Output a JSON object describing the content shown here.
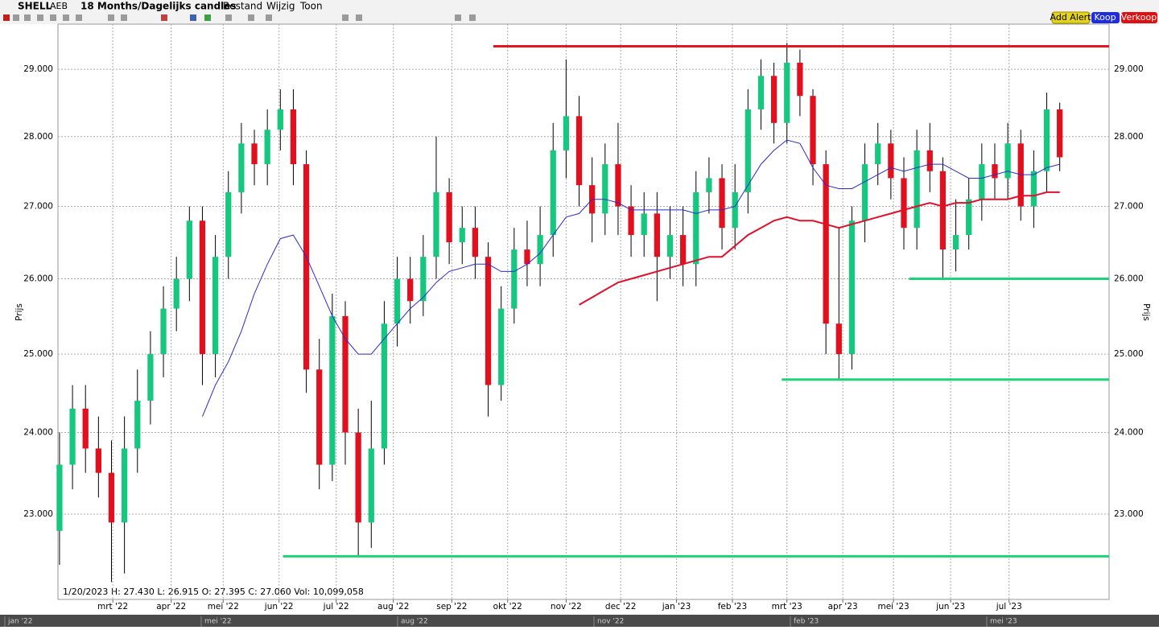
{
  "toolbar": {
    "symbol": "SHELL",
    "exchange": "AEB",
    "period": "18 Months/Dagelijks candles",
    "menus": [
      "Bestand",
      "Wijzig",
      "Toon"
    ],
    "buttons": [
      "Add Alert",
      "Koop",
      "Verkoop"
    ]
  },
  "info": "1/20/2023  H: 27.430  L: 26.915  O: 27.395  C: 27.060  Vol: 10,099,058",
  "navigator": {
    "labels": [
      "jan '22",
      "mei '22",
      "aug '22",
      "nov '22",
      "feb '23",
      "mei '23"
    ]
  },
  "chart_data": {
    "type": "candlestick",
    "ylabel": "Prijs",
    "log_scale": true,
    "grid": true,
    "up_color": "#17c77f",
    "down_color": "#e0101e",
    "categories": [
      null,
      null,
      null,
      null,
      null,
      null,
      null,
      null,
      null,
      null,
      null,
      null,
      null,
      null,
      null,
      null,
      null,
      null,
      null,
      null,
      null,
      null,
      null,
      null,
      null,
      null,
      null,
      null,
      null,
      null,
      null,
      null,
      null,
      null,
      null,
      null,
      null,
      null,
      null,
      null,
      null,
      null,
      null,
      null,
      null,
      null,
      null,
      null,
      null,
      null,
      null,
      null,
      null,
      null,
      null,
      null,
      null,
      null,
      null,
      null,
      null,
      null,
      null,
      null,
      null,
      null,
      null,
      null,
      null,
      null,
      null,
      null,
      null,
      null,
      null,
      null,
      null,
      null
    ],
    "open": [
      22.8,
      23.6,
      24.3,
      23.8,
      23.5,
      22.9,
      23.8,
      24.4,
      25.0,
      25.6,
      26.0,
      26.8,
      25.0,
      26.3,
      27.2,
      27.9,
      27.6,
      28.1,
      28.4,
      27.6,
      24.8,
      23.6,
      25.5,
      24.0,
      22.9,
      23.8,
      25.4,
      26.0,
      25.7,
      26.3,
      27.2,
      26.5,
      26.7,
      26.3,
      24.6,
      25.6,
      26.4,
      26.2,
      26.6,
      27.8,
      28.3,
      27.3,
      26.9,
      27.6,
      27.0,
      26.6,
      26.9,
      26.3,
      26.6,
      26.2,
      27.2,
      27.4,
      26.7,
      27.2,
      28.4,
      28.9,
      28.2,
      29.1,
      28.6,
      27.6,
      25.4,
      25.0,
      26.8,
      27.6,
      27.9,
      27.4,
      26.7,
      27.8,
      27.5,
      26.4,
      26.6,
      27.1,
      27.6,
      27.4,
      27.9,
      27.0,
      27.5,
      28.4
    ],
    "high": [
      24.0,
      24.6,
      24.6,
      24.2,
      23.9,
      24.2,
      24.8,
      25.3,
      25.9,
      26.3,
      27.0,
      27.0,
      26.6,
      27.5,
      28.2,
      28.1,
      28.4,
      28.7,
      28.7,
      27.8,
      25.2,
      25.8,
      25.7,
      24.3,
      24.4,
      25.7,
      26.3,
      26.3,
      26.6,
      28.0,
      27.4,
      27.0,
      27.0,
      26.5,
      25.9,
      26.7,
      26.8,
      27.0,
      28.2,
      29.15,
      28.6,
      27.7,
      27.9,
      28.2,
      27.3,
      27.2,
      27.2,
      27.0,
      27.0,
      27.5,
      27.7,
      27.6,
      27.6,
      28.7,
      29.15,
      29.1,
      29.4,
      29.3,
      28.7,
      27.8,
      26.7,
      27.0,
      27.9,
      28.2,
      28.1,
      27.7,
      28.1,
      28.2,
      27.7,
      27.1,
      27.4,
      27.9,
      27.9,
      28.2,
      28.1,
      27.8,
      28.65,
      28.5
    ],
    "low": [
      22.4,
      23.3,
      23.5,
      23.2,
      22.2,
      22.3,
      23.5,
      24.1,
      24.7,
      25.3,
      25.7,
      24.6,
      24.7,
      26.0,
      26.9,
      27.3,
      27.3,
      27.8,
      27.3,
      24.5,
      23.3,
      23.4,
      23.6,
      22.5,
      22.6,
      23.6,
      25.1,
      25.4,
      25.5,
      26.0,
      26.2,
      26.2,
      26.0,
      24.2,
      24.4,
      25.4,
      25.9,
      25.9,
      26.3,
      27.4,
      27.0,
      26.5,
      26.6,
      26.6,
      26.3,
      26.3,
      25.7,
      26.0,
      25.9,
      25.9,
      26.9,
      26.4,
      26.4,
      26.9,
      28.1,
      27.9,
      27.9,
      28.3,
      27.3,
      25.0,
      24.67,
      24.8,
      26.5,
      27.3,
      27.1,
      26.4,
      26.4,
      27.2,
      26.0,
      26.1,
      26.4,
      26.8,
      27.1,
      27.1,
      26.8,
      26.7,
      27.2,
      27.5
    ],
    "close": [
      23.6,
      24.3,
      23.8,
      23.5,
      22.9,
      23.8,
      24.4,
      25.0,
      25.6,
      26.0,
      26.8,
      25.0,
      26.3,
      27.2,
      27.9,
      27.6,
      28.1,
      28.4,
      27.6,
      24.8,
      23.6,
      25.5,
      24.0,
      22.9,
      23.8,
      25.4,
      26.0,
      25.7,
      26.3,
      27.2,
      26.5,
      26.7,
      26.3,
      24.6,
      25.6,
      26.4,
      26.2,
      26.6,
      27.8,
      28.3,
      27.3,
      26.9,
      27.6,
      27.0,
      26.6,
      26.9,
      26.3,
      26.6,
      26.2,
      27.2,
      27.4,
      26.7,
      27.2,
      28.4,
      28.9,
      28.2,
      29.1,
      28.6,
      27.6,
      25.4,
      25.0,
      26.8,
      27.6,
      27.9,
      27.4,
      26.7,
      27.8,
      27.5,
      26.4,
      26.6,
      27.1,
      27.6,
      27.4,
      27.9,
      27.0,
      27.5,
      28.4,
      27.7
    ],
    "series": [
      {
        "name": "MA short",
        "color": "#2a2ad0",
        "values": [
          null,
          null,
          null,
          null,
          null,
          null,
          null,
          null,
          null,
          null,
          null,
          24.2,
          24.6,
          24.9,
          25.3,
          25.8,
          26.2,
          26.55,
          26.6,
          26.3,
          25.9,
          25.5,
          25.2,
          25.0,
          25.0,
          25.2,
          25.4,
          25.6,
          25.75,
          25.95,
          26.1,
          26.15,
          26.2,
          26.2,
          26.1,
          26.1,
          26.2,
          26.35,
          26.6,
          26.85,
          26.9,
          27.1,
          27.1,
          27.05,
          26.95,
          26.95,
          26.95,
          26.95,
          26.95,
          26.9,
          26.95,
          26.95,
          27.0,
          27.3,
          27.6,
          27.8,
          27.95,
          27.9,
          27.55,
          27.3,
          27.25,
          27.25,
          27.35,
          27.45,
          27.55,
          27.5,
          27.55,
          27.6,
          27.6,
          27.5,
          27.4,
          27.4,
          27.45,
          27.5,
          27.45,
          27.45,
          27.55,
          27.6
        ]
      },
      {
        "name": "MA long",
        "color": "#e0102a",
        "values": [
          null,
          null,
          null,
          null,
          null,
          null,
          null,
          null,
          null,
          null,
          null,
          null,
          null,
          null,
          null,
          null,
          null,
          null,
          null,
          null,
          null,
          null,
          null,
          null,
          null,
          null,
          null,
          null,
          null,
          null,
          null,
          null,
          null,
          null,
          null,
          null,
          null,
          null,
          null,
          null,
          25.65,
          25.75,
          25.85,
          25.95,
          26.0,
          26.05,
          26.1,
          26.15,
          26.2,
          26.25,
          26.3,
          26.3,
          26.45,
          26.6,
          26.7,
          26.8,
          26.85,
          26.8,
          26.8,
          26.75,
          26.7,
          26.75,
          26.8,
          26.85,
          26.9,
          26.95,
          27.0,
          27.05,
          27.0,
          27.05,
          27.05,
          27.1,
          27.1,
          27.1,
          27.15,
          27.15,
          27.2,
          27.2
        ]
      }
    ],
    "levels": [
      {
        "value": 29.35,
        "from": 33.4,
        "color": "#e8141e"
      },
      {
        "value": 26.0,
        "from": 65.4,
        "color": "#1ed27a"
      },
      {
        "value": 24.67,
        "from": 55.6,
        "color": "#1ed27a"
      },
      {
        "value": 22.5,
        "from": 17.2,
        "color": "#1ed27a"
      }
    ],
    "xlim": [
      -0.12,
      80.8
    ],
    "xticks": [
      {
        "value": 4.1,
        "label": "mrt '22"
      },
      {
        "value": 8.6,
        "label": "apr '22"
      },
      {
        "value": 12.6,
        "label": "mei '22"
      },
      {
        "value": 16.9,
        "label": "jun '22"
      },
      {
        "value": 21.3,
        "label": "jul '22"
      },
      {
        "value": 25.7,
        "label": "aug '22"
      },
      {
        "value": 30.2,
        "label": "sep '22"
      },
      {
        "value": 34.5,
        "label": "okt '22"
      },
      {
        "value": 39.0,
        "label": "nov '22"
      },
      {
        "value": 43.2,
        "label": "dec '22"
      },
      {
        "value": 47.5,
        "label": "jan '23"
      },
      {
        "value": 51.8,
        "label": "feb '23"
      },
      {
        "value": 56.0,
        "label": "mrt '23"
      },
      {
        "value": 60.3,
        "label": "apr '23"
      },
      {
        "value": 64.2,
        "label": "mei '23"
      },
      {
        "value": 68.6,
        "label": "jun '23"
      },
      {
        "value": 73.1,
        "label": "jul '23"
      }
    ],
    "ylim": [
      22.0,
      29.69
    ],
    "yticks": [
      {
        "value": 23,
        "label": "23.000"
      },
      {
        "value": 24,
        "label": "24.000"
      },
      {
        "value": 25,
        "label": "25.000"
      },
      {
        "value": 26,
        "label": "26.000"
      },
      {
        "value": 27,
        "label": "27.000"
      },
      {
        "value": 28,
        "label": "28.000"
      },
      {
        "value": 29,
        "label": "29.000"
      }
    ]
  }
}
